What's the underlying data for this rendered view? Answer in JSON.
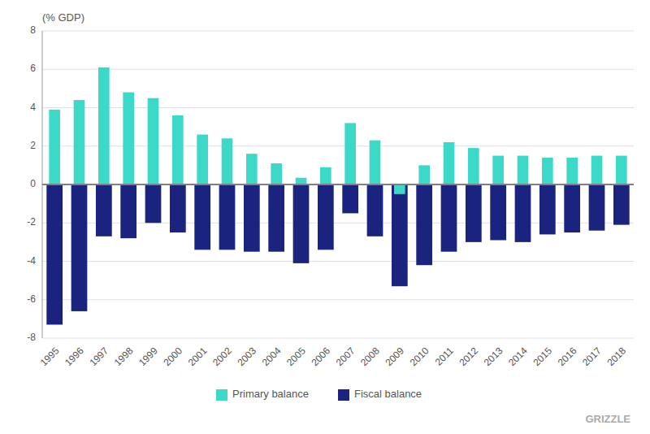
{
  "chart_data": {
    "type": "bar",
    "y_label": "(% GDP)",
    "categories": [
      "1995",
      "1996",
      "1997",
      "1998",
      "1999",
      "2000",
      "2001",
      "2002",
      "2003",
      "2004",
      "2005",
      "2006",
      "2007",
      "2008",
      "2009",
      "2010",
      "2011",
      "2012",
      "2013",
      "2014",
      "2015",
      "2016",
      "2017",
      "2018"
    ],
    "series": [
      {
        "name": "Primary balance",
        "color": "#3dd9c8",
        "values": [
          3.9,
          4.4,
          6.1,
          4.8,
          4.5,
          3.6,
          2.6,
          2.4,
          1.6,
          1.1,
          0.35,
          0.9,
          3.2,
          2.3,
          -0.5,
          1.0,
          2.2,
          1.9,
          1.5,
          1.5,
          1.4,
          1.4,
          1.5,
          1.5
        ]
      },
      {
        "name": "Fiscal balance",
        "color": "#1a237e",
        "values": [
          -7.3,
          -6.6,
          -2.7,
          -2.8,
          -2.0,
          -2.5,
          -3.4,
          -3.4,
          -3.5,
          -3.5,
          -4.1,
          -3.4,
          -1.5,
          -2.7,
          -5.3,
          -4.2,
          -3.5,
          -3.0,
          -2.9,
          -3.0,
          -2.6,
          -2.5,
          -2.4,
          -2.1
        ]
      }
    ],
    "ylim": [
      -8,
      8
    ],
    "yticks": [
      -8,
      -6,
      -4,
      -2,
      0,
      2,
      4,
      6,
      8
    ],
    "grid": true,
    "legend": "bottom",
    "annotations": [
      "GRIZZLE"
    ]
  }
}
